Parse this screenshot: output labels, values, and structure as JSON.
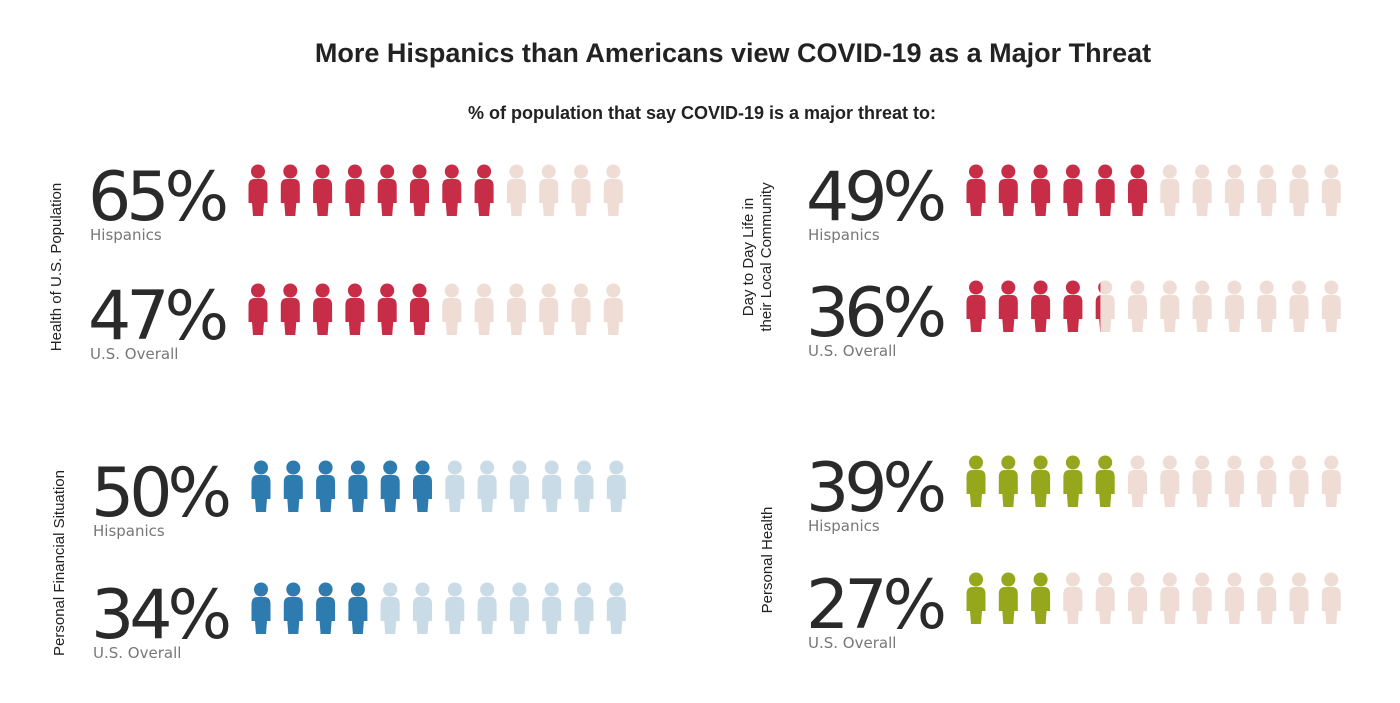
{
  "title": "More Hispanics than Americans view COVID-19 as a Major Threat",
  "subtitle": "% of population that say COVID-19 is a major threat to:",
  "colors": {
    "red": "#c72d47",
    "red_light": "#efddd5",
    "blue": "#2e7bb0",
    "blue_light": "#c9dbe6",
    "green": "#96a71c",
    "green_light": "#efddd5"
  },
  "icon": "person-icon",
  "icons_per_row": 12,
  "panels": [
    {
      "label": "Health of U.S. Population",
      "color": "#c72d47",
      "light": "#efddd5",
      "rows": [
        {
          "value_label": "65%",
          "group": "Hispanics",
          "filled_icons": 8
        },
        {
          "value_label": "47%",
          "group": "U.S. Overall",
          "filled_icons": 6
        }
      ]
    },
    {
      "label": "Day to Day Life in their Local Community",
      "color": "#c72d47",
      "light": "#efddd5",
      "rows": [
        {
          "value_label": "49%",
          "group": "Hispanics",
          "filled_icons": 6
        },
        {
          "value_label": "36%",
          "group": "U.S. Overall",
          "filled_icons": 4.3
        }
      ]
    },
    {
      "label": "Personal Financial Situation",
      "color": "#2e7bb0",
      "light": "#c9dbe6",
      "rows": [
        {
          "value_label": "50%",
          "group": "Hispanics",
          "filled_icons": 6
        },
        {
          "value_label": "34%",
          "group": "U.S. Overall",
          "filled_icons": 4.1
        }
      ]
    },
    {
      "label": "Personal Health",
      "color": "#96a71c",
      "light": "#efddd5",
      "rows": [
        {
          "value_label": "39%",
          "group": "Hispanics",
          "filled_icons": 5
        },
        {
          "value_label": "27%",
          "group": "U.S. Overall",
          "filled_icons": 3.1
        }
      ]
    }
  ],
  "chart_data": {
    "type": "pictograph",
    "title": "More Hispanics than Americans view COVID-19 as a Major Threat",
    "subtitle": "% of population that say COVID-19 is a major threat to:",
    "categories": [
      "Health of U.S. Population",
      "Day to Day Life in their Local Community",
      "Personal Financial Situation",
      "Personal Health"
    ],
    "series": [
      {
        "name": "Hispanics",
        "values": [
          65,
          49,
          50,
          39
        ]
      },
      {
        "name": "U.S. Overall",
        "values": [
          47,
          36,
          34,
          27
        ]
      }
    ]
  }
}
